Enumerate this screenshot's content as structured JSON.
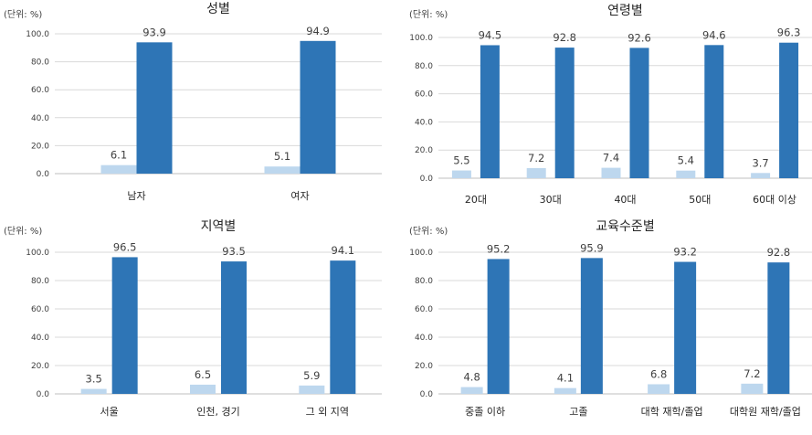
{
  "chart_data": [
    {
      "type": "bar",
      "title": "성별",
      "unit": "(단위: %)",
      "categories": [
        "남자",
        "여자"
      ],
      "series": [
        {
          "values": [
            6.1,
            5.1
          ],
          "color": "#bdd7ee"
        },
        {
          "values": [
            93.9,
            94.9
          ],
          "color": "#2e75b6"
        }
      ],
      "data_labels": [
        [
          "6.1",
          "5.1"
        ],
        [
          "93.9",
          "94.9"
        ]
      ],
      "ylim": [
        0,
        100
      ],
      "yticks": [
        "0.0",
        "20.0",
        "40.0",
        "60.0",
        "80.0",
        "100.0"
      ],
      "grid": true
    },
    {
      "type": "bar",
      "title": "연령별",
      "unit": "(단위: %)",
      "categories": [
        "20대",
        "30대",
        "40대",
        "50대",
        "60대 이상"
      ],
      "series": [
        {
          "values": [
            5.5,
            7.2,
            7.4,
            5.4,
            3.7
          ],
          "color": "#bdd7ee"
        },
        {
          "values": [
            94.5,
            92.8,
            92.6,
            94.6,
            96.3
          ],
          "color": "#2e75b6"
        }
      ],
      "data_labels": [
        [
          "5.5",
          "7.2",
          "7.4",
          "5.4",
          "3.7"
        ],
        [
          "94.5",
          "92.8",
          "92.6",
          "94.6",
          "96.3"
        ]
      ],
      "ylim": [
        0,
        100
      ],
      "yticks": [
        "0.0",
        "20.0",
        "40.0",
        "60.0",
        "80.0",
        "100.0"
      ],
      "grid": true
    },
    {
      "type": "bar",
      "title": "지역별",
      "unit": "(단위: %)",
      "categories": [
        "서울",
        "인천, 경기",
        "그 외 지역"
      ],
      "series": [
        {
          "values": [
            3.5,
            6.5,
            5.9
          ],
          "color": "#bdd7ee"
        },
        {
          "values": [
            96.5,
            93.5,
            94.1
          ],
          "color": "#2e75b6"
        }
      ],
      "data_labels": [
        [
          "3.5",
          "6.5",
          "5.9"
        ],
        [
          "96.5",
          "93.5",
          "94.1"
        ]
      ],
      "ylim": [
        0,
        100
      ],
      "yticks": [
        "0.0",
        "20.0",
        "40.0",
        "60.0",
        "80.0",
        "100.0"
      ],
      "grid": true
    },
    {
      "type": "bar",
      "title": "교육수준별",
      "unit": "(단위: %)",
      "categories": [
        "중졸 이하",
        "고졸",
        "대학 재학/졸업",
        "대학원 재학/졸업"
      ],
      "series": [
        {
          "values": [
            4.8,
            4.1,
            6.8,
            7.2
          ],
          "color": "#bdd7ee"
        },
        {
          "values": [
            95.2,
            95.9,
            93.2,
            92.8
          ],
          "color": "#2e75b6"
        }
      ],
      "data_labels": [
        [
          "4.8",
          "4.1",
          "6.8",
          "7.2"
        ],
        [
          "95.2",
          "95.9",
          "93.2",
          "92.8"
        ]
      ],
      "ylim": [
        0,
        100
      ],
      "yticks": [
        "0.0",
        "20.0",
        "40.0",
        "60.0",
        "80.0",
        "100.0"
      ],
      "grid": true
    }
  ]
}
